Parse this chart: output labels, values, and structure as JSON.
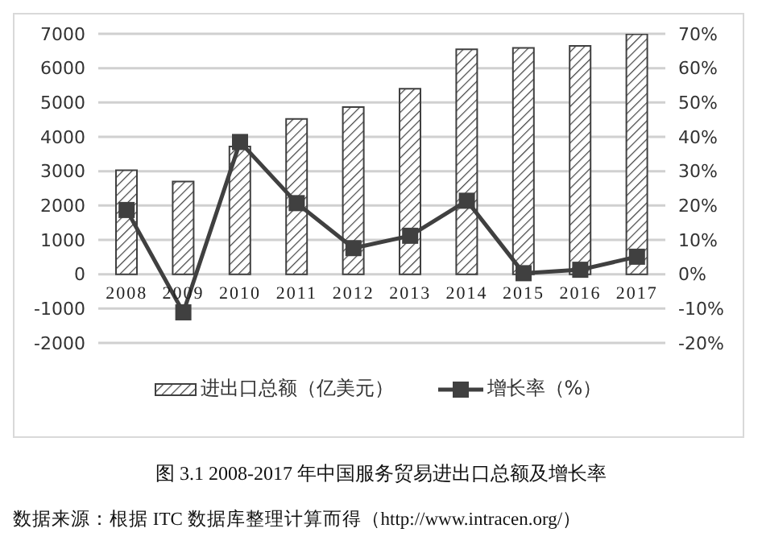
{
  "chart_data": {
    "type": "bar",
    "title": "图 3.1  2008-2017 年中国服务贸易进出口总额及增长率",
    "annotations": [
      "数据来源：根据 ITC 数据库整理计算而得（http://www.intracen.org/）"
    ],
    "categories": [
      "2008",
      "2009",
      "2010",
      "2011",
      "2012",
      "2013",
      "2014",
      "2015",
      "2016",
      "2017"
    ],
    "series": [
      {
        "name": "进出口总额（亿美元）",
        "color": "#404040",
        "values": [
          3030,
          2700,
          3720,
          4520,
          4870,
          5400,
          6550,
          6590,
          6650,
          6990
        ]
      },
      {
        "name": "增长率（%）",
        "type": "line",
        "axis": "y2",
        "color": "#404040",
        "marker": "square",
        "values": [
          18.7,
          -11.1,
          38.5,
          20.7,
          7.6,
          11.2,
          21.4,
          0.3,
          1.3,
          5.1
        ]
      }
    ],
    "ylim": [
      -2000,
      7000
    ],
    "yticks": [
      -2000,
      -1000,
      0,
      1000,
      2000,
      3000,
      4000,
      5000,
      6000,
      7000
    ],
    "y2lim": [
      -20,
      70
    ],
    "y2ticks": [
      {
        "value": -20,
        "label": "-20%"
      },
      {
        "value": -10,
        "label": "-10%"
      },
      {
        "value": 0,
        "label": "0%"
      },
      {
        "value": 10,
        "label": "10%"
      },
      {
        "value": 20,
        "label": "20%"
      },
      {
        "value": 30,
        "label": "30%"
      },
      {
        "value": 40,
        "label": "40%"
      },
      {
        "value": 50,
        "label": "50%"
      },
      {
        "value": 60,
        "label": "60%"
      },
      {
        "value": 70,
        "label": "70%"
      }
    ],
    "grid": "y",
    "legend": "bottom"
  }
}
